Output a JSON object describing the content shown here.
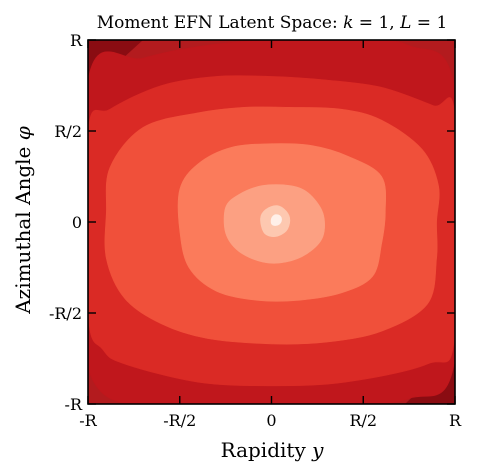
{
  "chart_data": {
    "type": "contour",
    "title": "Moment EFN Latent Space: ",
    "title_math": {
      "k_symbol": "k",
      "k_value": "1",
      "L_symbol": "L",
      "L_value": "1"
    },
    "xlabel": "Rapidity ",
    "xlabel_symbol": "y",
    "ylabel": "Azimuthal Angle ",
    "ylabel_symbol": "φ",
    "x_tick_labels": [
      "-R",
      "-R/2",
      "0",
      "R/2",
      "R"
    ],
    "y_tick_labels": [
      "-R",
      "-R/2",
      "0",
      "R/2",
      "R"
    ],
    "x_range_R": [
      -1,
      1
    ],
    "y_range_R": [
      -1,
      1
    ],
    "center_R": [
      0.03,
      0.02
    ],
    "colormap": "Reds",
    "background_color": "#b31b1e",
    "levels": [
      {
        "color": "#c0171c",
        "contour_R": [
          [
            -1.0,
            0.78
          ],
          [
            -0.7,
            0.9
          ],
          [
            -0.36,
            0.97
          ],
          [
            0.0,
            1.0
          ],
          [
            0.4,
            1.0
          ],
          [
            0.75,
            0.97
          ],
          [
            1.0,
            0.72
          ],
          [
            1.0,
            -0.75
          ],
          [
            0.75,
            -0.97
          ],
          [
            0.36,
            -1.0
          ],
          [
            -0.1,
            -1.0
          ],
          [
            -0.5,
            -1.0
          ],
          [
            -1.0,
            -0.8
          ]
        ]
      },
      {
        "color": "#da2a25",
        "contour_R": [
          [
            -1.0,
            0.5
          ],
          [
            -0.88,
            0.62
          ],
          [
            -0.6,
            0.75
          ],
          [
            -0.3,
            0.8
          ],
          [
            0.0,
            0.8
          ],
          [
            0.3,
            0.78
          ],
          [
            0.6,
            0.74
          ],
          [
            0.88,
            0.64
          ],
          [
            1.0,
            0.58
          ],
          [
            1.0,
            -0.62
          ],
          [
            0.85,
            -0.78
          ],
          [
            0.4,
            -0.88
          ],
          [
            0.0,
            -0.9
          ],
          [
            -0.4,
            -0.88
          ],
          [
            -0.8,
            -0.78
          ],
          [
            -0.92,
            -0.7
          ],
          [
            -1.0,
            -0.5
          ]
        ]
      },
      {
        "color": "#f0503a",
        "contour_R": [
          [
            -0.88,
            0.3
          ],
          [
            -0.7,
            0.52
          ],
          [
            -0.4,
            0.6
          ],
          [
            -0.15,
            0.63
          ],
          [
            0.1,
            0.63
          ],
          [
            0.38,
            0.62
          ],
          [
            0.6,
            0.56
          ],
          [
            0.82,
            0.4
          ],
          [
            0.91,
            0.2
          ],
          [
            0.9,
            0.0
          ],
          [
            0.9,
            -0.2
          ],
          [
            0.85,
            -0.45
          ],
          [
            0.6,
            -0.6
          ],
          [
            0.3,
            -0.66
          ],
          [
            0.0,
            -0.67
          ],
          [
            -0.35,
            -0.64
          ],
          [
            -0.6,
            -0.56
          ],
          [
            -0.8,
            -0.42
          ],
          [
            -0.9,
            -0.2
          ],
          [
            -0.9,
            0.05
          ]
        ]
      },
      {
        "color": "#fb7b5b",
        "contour_R": [
          [
            -0.5,
            0.18
          ],
          [
            -0.4,
            0.32
          ],
          [
            -0.22,
            0.41
          ],
          [
            0.0,
            0.43
          ],
          [
            0.22,
            0.42
          ],
          [
            0.42,
            0.36
          ],
          [
            0.6,
            0.25
          ],
          [
            0.62,
            0.05
          ],
          [
            0.6,
            -0.12
          ],
          [
            0.55,
            -0.3
          ],
          [
            0.38,
            -0.39
          ],
          [
            0.15,
            -0.43
          ],
          [
            -0.08,
            -0.43
          ],
          [
            -0.3,
            -0.38
          ],
          [
            -0.45,
            -0.25
          ],
          [
            -0.5,
            -0.05
          ]
        ]
      },
      {
        "color": "#fca082",
        "contour_R": [
          [
            -0.25,
            0.08
          ],
          [
            -0.18,
            0.15
          ],
          [
            -0.05,
            0.2
          ],
          [
            0.1,
            0.2
          ],
          [
            0.2,
            0.16
          ],
          [
            0.28,
            0.05
          ],
          [
            0.28,
            -0.08
          ],
          [
            0.2,
            -0.17
          ],
          [
            0.08,
            -0.22
          ],
          [
            -0.05,
            -0.22
          ],
          [
            -0.18,
            -0.16
          ],
          [
            -0.25,
            -0.06
          ]
        ]
      },
      {
        "color": "#fdc8b0",
        "contour_R": [
          [
            -0.06,
            0.02
          ],
          [
            -0.03,
            0.07
          ],
          [
            0.03,
            0.09
          ],
          [
            0.08,
            0.06
          ],
          [
            0.1,
            0.01
          ],
          [
            0.08,
            -0.05
          ],
          [
            0.02,
            -0.08
          ],
          [
            -0.04,
            -0.06
          ]
        ]
      },
      {
        "color": "#fff0e9",
        "contour_R": [
          [
            0.0,
            0.02
          ],
          [
            0.02,
            0.04
          ],
          [
            0.045,
            0.035
          ],
          [
            0.055,
            0.015
          ],
          [
            0.045,
            -0.01
          ],
          [
            0.02,
            -0.02
          ],
          [
            0.0,
            -0.01
          ]
        ]
      }
    ],
    "corners": [
      {
        "corner": "top-left",
        "color": "#8a0c12"
      },
      {
        "corner": "bottom-right",
        "color": "#8a0c12"
      }
    ],
    "grid": false,
    "legend": "none"
  }
}
